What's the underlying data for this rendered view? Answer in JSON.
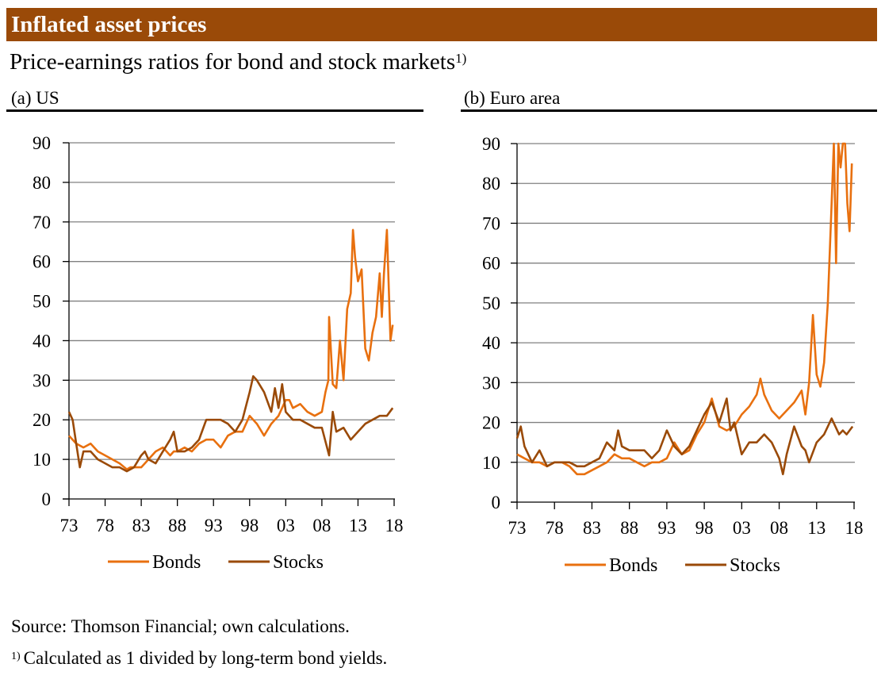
{
  "header": {
    "title": "Inflated asset prices"
  },
  "subtitle": {
    "text": "Price-earnings ratios for bond and stock markets",
    "footnote_marker": "1)"
  },
  "colors": {
    "header_bg": "#9a4a08",
    "bonds": "#e8700f",
    "stocks": "#9a4a08",
    "grid": "#808080"
  },
  "source": "Source: Thomson Financial; own calculations.",
  "footnote": {
    "marker": "1)",
    "text": "Calculated as 1 divided by long-term bond yields."
  },
  "chart_data": [
    {
      "type": "line",
      "title": "(a) US",
      "xlabel": "",
      "ylabel": "",
      "ylim": [
        0,
        90
      ],
      "xlim": [
        1973,
        2018
      ],
      "yticks": [
        "0",
        "10",
        "20",
        "30",
        "40",
        "50",
        "60",
        "70",
        "80",
        "90"
      ],
      "xticks": [
        "73",
        "78",
        "83",
        "88",
        "93",
        "98",
        "03",
        "08",
        "13",
        "18"
      ],
      "grid": "horizontal",
      "legend": {
        "placement": "bottom",
        "entries": [
          "Bonds",
          "Stocks"
        ]
      },
      "series": [
        {
          "name": "Bonds",
          "x": [
            1973,
            1974,
            1975,
            1976,
            1977,
            1978,
            1979,
            1980,
            1981,
            1981.5,
            1982,
            1983,
            1983.5,
            1984,
            1985,
            1986,
            1987,
            1987.5,
            1988,
            1989,
            1990,
            1991,
            1992,
            1993,
            1994,
            1995,
            1996,
            1997,
            1998,
            1999,
            2000,
            2001,
            2002,
            2003,
            2003.5,
            2004,
            2005,
            2006,
            2007,
            2008,
            2008.5,
            2008.9,
            2009,
            2009.5,
            2010,
            2010.5,
            2011,
            2011.5,
            2012,
            2012.3,
            2012.6,
            2013,
            2013.5,
            2014,
            2014.5,
            2015,
            2015.5,
            2016,
            2016.3,
            2016.6,
            2017,
            2017.5,
            2017.8
          ],
          "y": [
            16,
            14,
            13,
            14,
            12,
            11,
            10,
            9,
            7.5,
            8,
            8,
            8,
            9,
            10,
            12,
            13,
            11,
            12,
            12,
            13,
            12,
            14,
            15,
            15,
            13,
            16,
            17,
            17,
            21,
            19,
            16,
            19,
            21,
            25,
            25,
            23,
            24,
            22,
            21,
            22,
            27,
            30,
            46,
            29,
            28,
            40,
            30,
            48,
            52,
            68,
            61,
            55,
            58,
            38,
            35,
            42,
            46,
            57,
            46,
            57,
            68,
            40,
            44
          ]
        },
        {
          "name": "Stocks",
          "x": [
            1973,
            1973.5,
            1974,
            1974.5,
            1975,
            1976,
            1977,
            1978,
            1979,
            1980,
            1981,
            1982,
            1983,
            1983.5,
            1984,
            1985,
            1986,
            1987,
            1987.5,
            1988,
            1989,
            1990,
            1991,
            1992,
            1993,
            1994,
            1995,
            1996,
            1997,
            1998,
            1998.5,
            1999,
            2000,
            2001,
            2001.5,
            2002,
            2002.5,
            2003,
            2004,
            2005,
            2006,
            2007,
            2008,
            2009,
            2009.5,
            2010,
            2011,
            2012,
            2013,
            2014,
            2015,
            2016,
            2017,
            2017.8
          ],
          "y": [
            22,
            20,
            14,
            8,
            12,
            12,
            10,
            9,
            8,
            8,
            7,
            8,
            11,
            12,
            10,
            9,
            12,
            15,
            17,
            12,
            12,
            13,
            15,
            20,
            20,
            20,
            19,
            17,
            20,
            27,
            31,
            30,
            27,
            22,
            28,
            23,
            29,
            22,
            20,
            20,
            19,
            18,
            18,
            11,
            22,
            17,
            18,
            15,
            17,
            19,
            20,
            21,
            21,
            23
          ]
        }
      ]
    },
    {
      "type": "line",
      "title": "(b) Euro area",
      "xlabel": "",
      "ylabel": "",
      "ylim": [
        0,
        90
      ],
      "xlim": [
        1973,
        2018
      ],
      "yticks": [
        "0",
        "10",
        "20",
        "30",
        "40",
        "50",
        "60",
        "70",
        "80",
        "90"
      ],
      "xticks": [
        "73",
        "78",
        "83",
        "88",
        "93",
        "98",
        "03",
        "08",
        "13",
        "18"
      ],
      "grid": "horizontal",
      "legend": {
        "placement": "bottom",
        "entries": [
          "Bonds",
          "Stocks"
        ]
      },
      "series": [
        {
          "name": "Bonds",
          "x": [
            1973,
            1974,
            1975,
            1976,
            1977,
            1978,
            1979,
            1980,
            1981,
            1982,
            1983,
            1984,
            1985,
            1986,
            1987,
            1988,
            1989,
            1990,
            1991,
            1992,
            1993,
            1994,
            1995,
            1996,
            1997,
            1998,
            1999,
            2000,
            2001,
            2002,
            2003,
            2004,
            2005,
            2005.5,
            2006,
            2007,
            2008,
            2009,
            2010,
            2011,
            2011.5,
            2012,
            2012.5,
            2013,
            2013.5,
            2014,
            2014.5,
            2015,
            2015.3,
            2015.6,
            2015.9,
            2016.2,
            2016.5,
            2016.8,
            2017.1,
            2017.4,
            2017.7
          ],
          "y": [
            12,
            11,
            10,
            10,
            9,
            10,
            10,
            9,
            7,
            7,
            8,
            9,
            10,
            12,
            11,
            11,
            10,
            9,
            10,
            10,
            11,
            15,
            12,
            13,
            17,
            20,
            26,
            19,
            18,
            19,
            22,
            24,
            27,
            31,
            27,
            23,
            21,
            23,
            25,
            28,
            22,
            30,
            47,
            32,
            29,
            35,
            50,
            75,
            90,
            60,
            90,
            84,
            90,
            90,
            75,
            68,
            85
          ]
        },
        {
          "name": "Stocks",
          "x": [
            1973,
            1973.5,
            1974,
            1975,
            1976,
            1977,
            1978,
            1979,
            1980,
            1981,
            1982,
            1983,
            1984,
            1985,
            1986,
            1986.5,
            1987,
            1988,
            1989,
            1990,
            1991,
            1992,
            1993,
            1994,
            1995,
            1996,
            1997,
            1998,
            1999,
            2000,
            2001,
            2001.5,
            2002,
            2003,
            2004,
            2005,
            2006,
            2007,
            2008,
            2008.5,
            2009,
            2010,
            2011,
            2011.5,
            2012,
            2013,
            2014,
            2015,
            2016,
            2016.5,
            2017,
            2017.8
          ],
          "y": [
            16,
            19,
            14,
            10,
            13,
            9,
            10,
            10,
            10,
            9,
            9,
            10,
            11,
            15,
            13,
            18,
            14,
            13,
            13,
            13,
            11,
            13,
            18,
            14,
            12,
            14,
            18,
            22,
            25,
            20,
            26,
            18,
            20,
            12,
            15,
            15,
            17,
            15,
            11,
            7,
            12,
            19,
            14,
            13,
            10,
            15,
            17,
            21,
            17,
            18,
            17,
            19
          ]
        }
      ]
    }
  ]
}
